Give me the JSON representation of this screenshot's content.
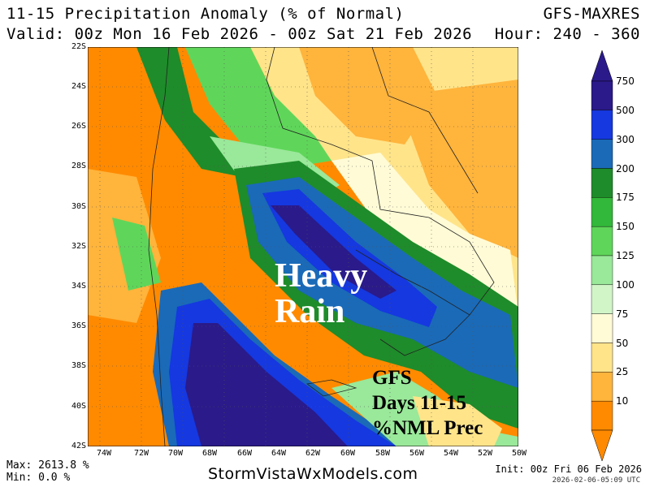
{
  "header": {
    "title": "11-15 Precipitation Anomaly (% of Normal)",
    "model": "GFS-MAXRES",
    "valid": "Valid: 00z Mon 16 Feb 2026 - 00z Sat 21 Feb 2026",
    "hour": "Hour: 240 - 360"
  },
  "map": {
    "lat_labels": [
      "22S",
      "24S",
      "26S",
      "28S",
      "30S",
      "32S",
      "34S",
      "36S",
      "38S",
      "40S",
      "42S"
    ],
    "lon_labels": [
      "74W",
      "72W",
      "70W",
      "68W",
      "66W",
      "64W",
      "62W",
      "60W",
      "58W",
      "56W",
      "54W",
      "52W",
      "50W"
    ],
    "overlay_text": [
      "Heavy",
      "Rain"
    ],
    "overlay_text2": [
      "GFS",
      "Days 11-15",
      "%NML Prec"
    ]
  },
  "colorbar": {
    "labels": [
      "750",
      "500",
      "300",
      "200",
      "175",
      "150",
      "125",
      "100",
      "75",
      "50",
      "25",
      "10"
    ],
    "colors": {
      "750": "#2a1a8a",
      "500": "#1538e0",
      "300": "#1a6ab8",
      "200": "#1e8c2a",
      "175": "#32b83a",
      "150": "#5fd65a",
      "125": "#9ae89a",
      "100": "#d2f5c8",
      "75": "#fffbd6",
      "50": "#ffe48a",
      "25": "#ffb43c",
      "10": "#ff8a00"
    }
  },
  "footer": {
    "max": "Max: 2613.8 %",
    "min": "Min: 0.0 %",
    "site": "StormVistaWxModels.com",
    "init": "Init: 00z Fri 06 Feb 2026",
    "stamp": "2026-02-06-05:09 UTC"
  }
}
